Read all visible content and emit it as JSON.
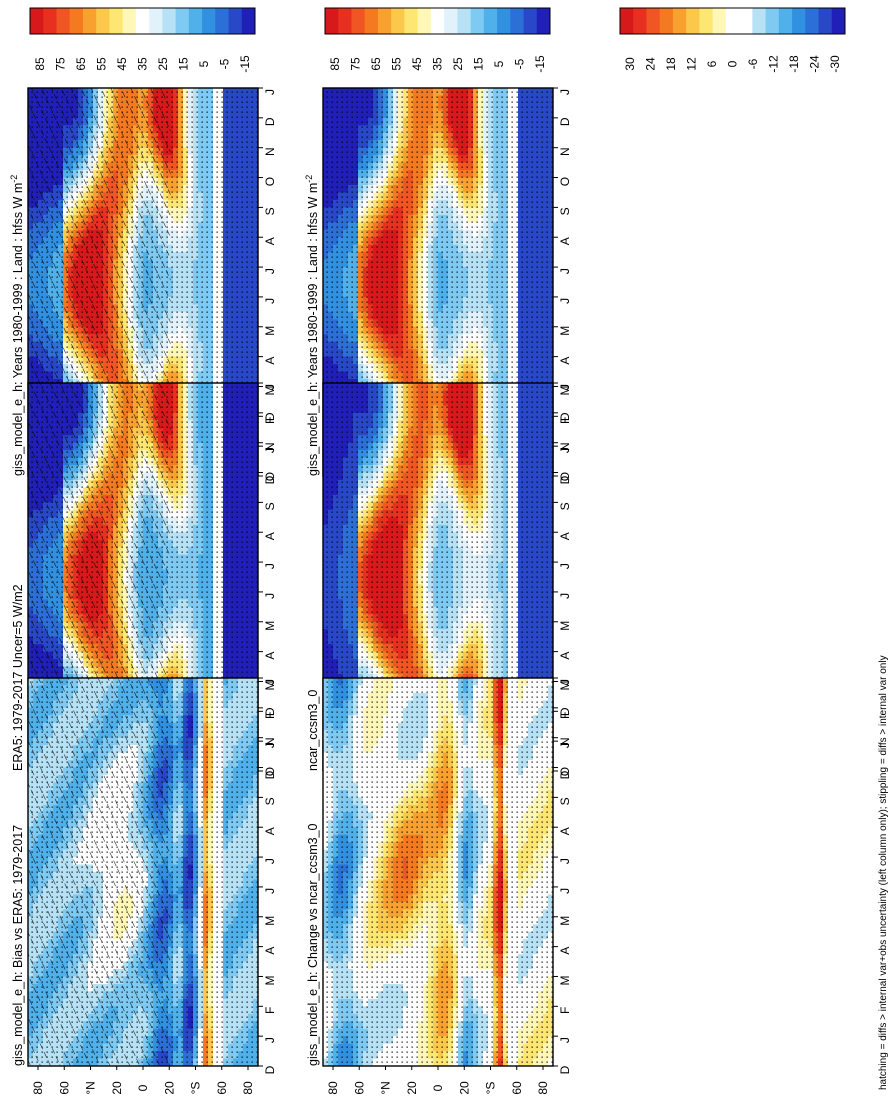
{
  "figure": {
    "footnote": "hatching = diffs > internal var+obs uncertainty (left column only); stippling = diffs > internal var only"
  },
  "colorbars": {
    "absolute": {
      "labels": [
        "85",
        "75",
        "65",
        "55",
        "45",
        "35",
        "25",
        "15",
        "5",
        "-5",
        "-15"
      ],
      "colors": [
        "#d7191c",
        "#e7301f",
        "#f05623",
        "#f47a22",
        "#f8a030",
        "#fbc84c",
        "#fde772",
        "#fff7b8",
        "#ffffff",
        "#e2f2fb",
        "#b7e2f6",
        "#7fcaf2",
        "#4fb0ea",
        "#3290e0",
        "#2c6fd6",
        "#2848c8",
        "#2020b8"
      ]
    },
    "difference": {
      "labels": [
        "30",
        "24",
        "18",
        "12",
        "6",
        "0",
        "-6",
        "-12",
        "-18",
        "-24",
        "-30"
      ],
      "colors": [
        "#d7191c",
        "#e7301f",
        "#f05623",
        "#f47a22",
        "#f8a030",
        "#fbc84c",
        "#fde772",
        "#fff7b8",
        "#ffffff",
        "#ffffff",
        "#b7e2f6",
        "#7fcaf2",
        "#4fb0ea",
        "#3290e0",
        "#2c6fd6",
        "#2848c8",
        "#2020b8"
      ]
    }
  },
  "chart_data": [
    {
      "type": "heatmap",
      "title": "giss_model_e_h: Years 1980-1999 : Land : hfss W m",
      "title_sup": "-2",
      "x": [
        "D",
        "J",
        "F",
        "M",
        "A",
        "M",
        "J",
        "J",
        "A",
        "S",
        "O",
        "N",
        "D",
        "J"
      ],
      "y_ticks": [
        "80",
        "60",
        "°N",
        "20",
        "0",
        "20",
        "°S",
        "60",
        "80"
      ],
      "colorbar": "absolute",
      "field": "abs",
      "overlay": "hatch+stipple",
      "value_range": [
        -15,
        85
      ]
    },
    {
      "type": "heatmap",
      "title": "giss_model_e_h: Years 1980-1999 : Land : hfss W m",
      "title_sup": "-2",
      "x": [
        "D",
        "J",
        "F",
        "M",
        "A",
        "M",
        "J",
        "J",
        "A",
        "S",
        "O",
        "N",
        "D",
        "J"
      ],
      "y_ticks": [
        "80",
        "60",
        "°N",
        "20",
        "0",
        "20",
        "°S",
        "60",
        "80"
      ],
      "colorbar": "absolute",
      "field": "abs",
      "overlay": "stipple",
      "value_range": [
        -15,
        85
      ]
    },
    {
      "type": "heatmap",
      "title": "ERA5: 1979-2017 Uncer=5 W/m2",
      "title_sup": "",
      "x": [
        "D",
        "J",
        "F",
        "M",
        "A",
        "M",
        "J",
        "J",
        "A",
        "S",
        "O",
        "N",
        "D",
        "J"
      ],
      "y_ticks": [
        "80",
        "60",
        "°N",
        "20",
        "0",
        "20",
        "°S",
        "60",
        "80"
      ],
      "colorbar": "absolute",
      "field": "obs",
      "overlay": "hatch+stipple",
      "value_range": [
        -15,
        85
      ]
    },
    {
      "type": "heatmap",
      "title": "ncar_ccsm3_0",
      "title_sup": "",
      "x": [
        "D",
        "J",
        "F",
        "M",
        "A",
        "M",
        "J",
        "J",
        "A",
        "S",
        "O",
        "N",
        "D",
        "J"
      ],
      "y_ticks": [
        "80",
        "60",
        "°N",
        "20",
        "0",
        "20",
        "°S",
        "60",
        "80"
      ],
      "colorbar": "absolute",
      "field": "ncar",
      "overlay": "stipple",
      "value_range": [
        -15,
        85
      ]
    },
    {
      "type": "heatmap",
      "title": "giss_model_e_h: Bias vs ERA5: 1979-2017",
      "title_sup": "",
      "x": [
        "D",
        "J",
        "F",
        "M",
        "A",
        "M",
        "J",
        "J",
        "A",
        "S",
        "O",
        "N",
        "D",
        "J"
      ],
      "y_ticks": [
        "80",
        "60",
        "°N",
        "20",
        "0",
        "20",
        "°S",
        "60",
        "80"
      ],
      "colorbar": "difference",
      "field": "bias",
      "overlay": "hatch+stipple",
      "value_range": [
        -30,
        30
      ]
    },
    {
      "type": "heatmap",
      "title": "giss_model_e_h: Change vs ncar_ccsm3_0",
      "title_sup": "",
      "x": [
        "D",
        "J",
        "F",
        "M",
        "A",
        "M",
        "J",
        "J",
        "A",
        "S",
        "O",
        "N",
        "D",
        "J"
      ],
      "y_ticks": [
        "80",
        "60",
        "°N",
        "20",
        "0",
        "20",
        "°S",
        "60",
        "80"
      ],
      "colorbar": "difference",
      "field": "change",
      "overlay": "stipple",
      "value_range": [
        -30,
        30
      ]
    }
  ]
}
